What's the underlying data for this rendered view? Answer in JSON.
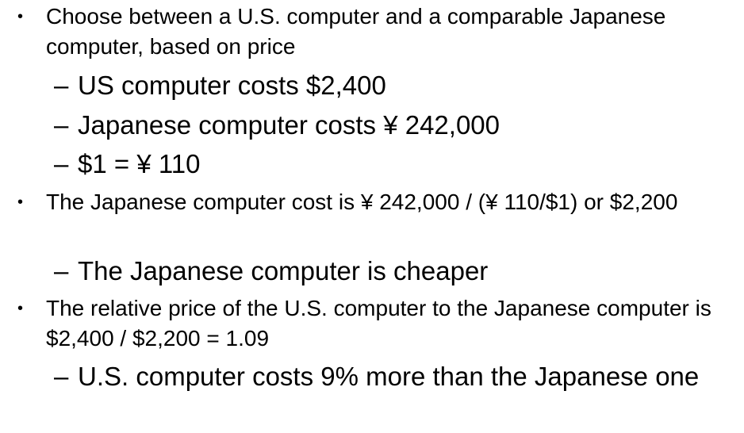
{
  "slide": {
    "bullet_marker": "•",
    "dash_marker": "–",
    "items": [
      {
        "text": "Choose between a U.S. computer and a comparable Japanese computer, based on price"
      },
      {
        "text": "US computer costs $2,400"
      },
      {
        "text": "Japanese computer costs ¥ 242,000"
      },
      {
        "text": "$1 = ¥ 110"
      },
      {
        "text": "The Japanese computer cost  is ¥ 242,000 / (¥ 110/$1) or $2,200"
      },
      {
        "text": "The Japanese computer is cheaper"
      },
      {
        "text": "The relative price of the U.S. computer to the Japanese computer is $2,400 / $2,200 = 1.09"
      },
      {
        "text": "U.S. computer costs 9% more than the Japanese one"
      }
    ]
  }
}
